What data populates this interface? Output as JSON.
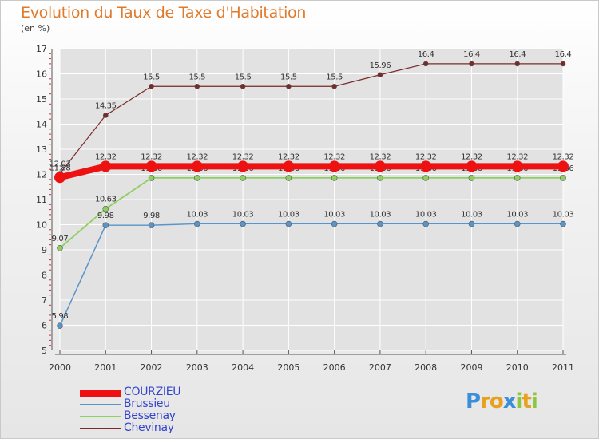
{
  "title": "Evolution du Taux de Taxe d'Habitation",
  "unit": "(en %)",
  "colors": {
    "title": "#e07a2a",
    "grid": "#ffffff",
    "axis": "#555555"
  },
  "chart_data": {
    "type": "line",
    "title": "Evolution du Taux de Taxe d'Habitation",
    "ylabel": "(en %)",
    "xlabel": "",
    "x": [
      "2000",
      "2001",
      "2002",
      "2003",
      "2004",
      "2005",
      "2006",
      "2007",
      "2008",
      "2009",
      "2010",
      "2011"
    ],
    "ylim": [
      5,
      17
    ],
    "yticks": [
      "5",
      "6",
      "7",
      "8",
      "9",
      "10",
      "11",
      "12",
      "13",
      "14",
      "15",
      "16",
      "17"
    ],
    "grid": true,
    "legend": "bottom-left",
    "series": [
      {
        "name": "Chevinay",
        "color": "#7a2a2a",
        "width": 1.2,
        "marker": 3,
        "values": [
          12.03,
          14.35,
          15.5,
          15.5,
          15.5,
          15.5,
          15.5,
          15.96,
          16.4,
          16.4,
          16.4,
          16.4
        ],
        "labels": [
          "12.03",
          "14.35",
          "15.5",
          "15.5",
          "15.5",
          "15.5",
          "15.5",
          "15.96",
          "16.4",
          "16.4",
          "16.4",
          "16.4"
        ]
      },
      {
        "name": "Bessenay",
        "color": "#8ed060",
        "width": 1.8,
        "marker": 3.5,
        "values": [
          9.07,
          10.63,
          11.86,
          11.86,
          11.86,
          11.86,
          11.86,
          11.86,
          11.86,
          11.86,
          11.86,
          11.86
        ],
        "labels": [
          "9.07",
          "10.63",
          "11.86",
          "11.86",
          "11.86",
          "11.86",
          "11.86",
          "11.86",
          "11.86",
          "11.86",
          "11.86",
          "11.86"
        ]
      },
      {
        "name": "Brussieu",
        "color": "#5a94c8",
        "width": 1.5,
        "marker": 3.5,
        "values": [
          5.98,
          9.98,
          9.98,
          10.03,
          10.03,
          10.03,
          10.03,
          10.03,
          10.03,
          10.03,
          10.03,
          10.03
        ],
        "labels": [
          "5.98",
          "9.98",
          "9.98",
          "10.03",
          "10.03",
          "10.03",
          "10.03",
          "10.03",
          "10.03",
          "10.03",
          "10.03",
          "10.03"
        ]
      },
      {
        "name": "COURZIEU",
        "color": "#ee1111",
        "width": 8,
        "marker": 7,
        "values": [
          11.88,
          12.32,
          12.32,
          12.32,
          12.32,
          12.32,
          12.32,
          12.32,
          12.32,
          12.32,
          12.32,
          12.32
        ],
        "labels": [
          "11.88",
          "12.32",
          "12.32",
          "12.32",
          "12.32",
          "12.32",
          "12.32",
          "12.32",
          "12.32",
          "12.32",
          "12.32",
          "12.32"
        ]
      }
    ]
  },
  "legend": {
    "items": [
      {
        "label": "COURZIEU",
        "color": "#ee1111",
        "label_color": "#3344cc",
        "thickness": 9
      },
      {
        "label": "Brussieu",
        "color": "#5a94c8",
        "label_color": "#3344cc",
        "thickness": 2
      },
      {
        "label": "Bessenay",
        "color": "#8ed060",
        "label_color": "#3344cc",
        "thickness": 2
      },
      {
        "label": "Chevinay",
        "color": "#7a2a2a",
        "label_color": "#3344cc",
        "thickness": 2
      }
    ]
  },
  "logo": {
    "text": "Proxiti",
    "letter_colors": [
      "#3a8fd8",
      "#e8a020",
      "#e8a020",
      "#3a8fd8",
      "#8cc63f",
      "#e8a020",
      "#8cc63f"
    ]
  }
}
